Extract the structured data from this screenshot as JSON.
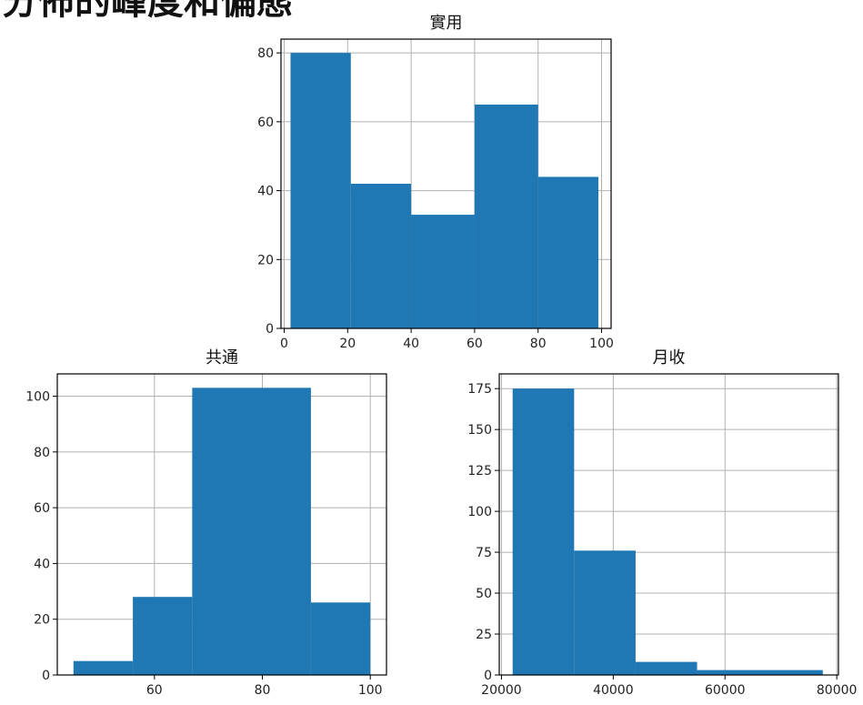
{
  "page": {
    "heading": "分佈的峰度和偏態"
  },
  "colors": {
    "bar": "#1f77b4",
    "grid": "#b0b0b0",
    "axis": "#000000"
  },
  "chart_data": [
    {
      "type": "bar",
      "title": "實用",
      "bins": [
        [
          2,
          21
        ],
        [
          21,
          40
        ],
        [
          40,
          60
        ],
        [
          60,
          80
        ],
        [
          80,
          99
        ]
      ],
      "values": [
        80,
        42,
        33,
        65,
        44
      ],
      "xlim": [
        -1,
        103
      ],
      "ylim": [
        0,
        84
      ],
      "xticks": [
        0,
        20,
        40,
        60,
        80,
        100
      ],
      "xtick_labels": [
        "0",
        "20",
        "40",
        "60",
        "80",
        "100"
      ],
      "yticks": [
        0,
        20,
        40,
        60,
        80
      ],
      "ytick_labels": [
        "0",
        "20",
        "40",
        "60",
        "80"
      ],
      "grid": true,
      "legend": "none"
    },
    {
      "type": "bar",
      "title": "共通",
      "bins": [
        [
          45,
          56
        ],
        [
          56,
          67
        ],
        [
          67,
          89
        ],
        [
          89,
          100
        ]
      ],
      "values": [
        5,
        28,
        103,
        26
      ],
      "xlim": [
        42,
        103
      ],
      "ylim": [
        0,
        108
      ],
      "xticks": [
        60,
        80,
        100
      ],
      "xtick_labels": [
        "60",
        "80",
        "100"
      ],
      "yticks": [
        0,
        20,
        40,
        60,
        80,
        100
      ],
      "ytick_labels": [
        "0",
        "20",
        "40",
        "60",
        "80",
        "100"
      ],
      "grid": true,
      "legend": "none"
    },
    {
      "type": "bar",
      "title": "月收",
      "bins": [
        [
          22000,
          33000
        ],
        [
          33000,
          44000
        ],
        [
          44000,
          55000
        ],
        [
          55000,
          77500
        ]
      ],
      "values": [
        175,
        76,
        8,
        3
      ],
      "xlim": [
        19600,
        80300
      ],
      "ylim": [
        0,
        184
      ],
      "xticks": [
        20000,
        40000,
        60000,
        80000
      ],
      "xtick_labels": [
        "20000",
        "40000",
        "60000",
        "80000"
      ],
      "yticks": [
        0,
        25,
        50,
        75,
        100,
        125,
        150,
        175
      ],
      "ytick_labels": [
        "0",
        "25",
        "50",
        "75",
        "100",
        "125",
        "150",
        "175"
      ],
      "grid": true,
      "legend": "none"
    }
  ]
}
